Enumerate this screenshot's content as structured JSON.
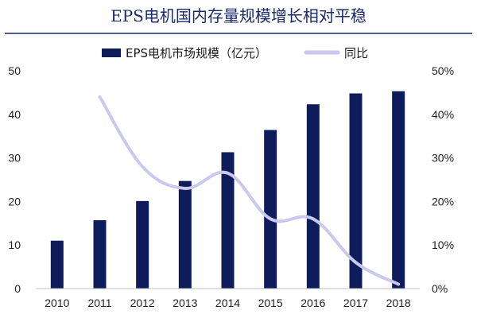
{
  "chart_data": {
    "type": "bar",
    "title": "EPS电机国内存量规模增长相对平稳",
    "categories": [
      "2010",
      "2011",
      "2012",
      "2013",
      "2014",
      "2015",
      "2016",
      "2017",
      "2018"
    ],
    "series": [
      {
        "name": "EPS电机市场规模（亿元）",
        "kind": "bar",
        "axis": "left",
        "color": "#0f1c5c",
        "values": [
          11,
          15.7,
          20.1,
          24.7,
          31.3,
          36.4,
          42.3,
          44.8,
          45.3
        ]
      },
      {
        "name": "同比",
        "kind": "line",
        "axis": "right",
        "color": "#c9c9f0",
        "values": [
          null,
          44,
          28,
          23,
          26.5,
          16,
          16,
          6,
          1
        ]
      }
    ],
    "y_left": {
      "min": 0,
      "max": 50,
      "ticks": [
        "0",
        "10",
        "20",
        "30",
        "40",
        "50"
      ]
    },
    "y_right": {
      "min": 0,
      "max": 50,
      "ticks": [
        "0%",
        "10%",
        "20%",
        "30%",
        "40%",
        "50%"
      ]
    },
    "legend_position": "top",
    "grid": false
  }
}
